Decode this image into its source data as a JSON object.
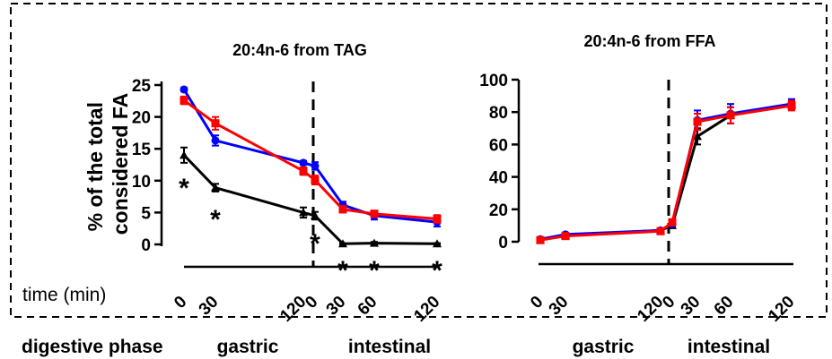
{
  "time_label": "time (min)",
  "phase_row_label": "digestive phase",
  "colors": {
    "series_1": "#0000ff",
    "series_2": "#ff0000",
    "series_3": "#000000"
  },
  "chart_data": [
    {
      "type": "line",
      "title": "20:4n-6 from TAG",
      "ylabel": "% of the total considered FA",
      "ylim": [
        0,
        25
      ],
      "yticks": [
        0,
        5,
        10,
        15,
        20,
        25
      ],
      "x_tick_labels": [
        "0",
        "30",
        "120",
        "0",
        "30",
        "60",
        "120"
      ],
      "phase_labels": [
        "gastric",
        "intestinal"
      ],
      "significance_marker": "*",
      "significant_points": [
        0,
        1,
        2,
        3,
        4,
        5
      ],
      "series": [
        {
          "values": [
            24.3,
            16.3,
            12.8,
            12.3,
            6.2,
            4.5,
            3.5
          ],
          "errors": [
            0.3,
            0.8,
            0.3,
            0.6,
            0.5,
            0.6,
            0.7
          ]
        },
        {
          "values": [
            22.6,
            19.0,
            11.5,
            10.1,
            5.5,
            4.8,
            4.0
          ],
          "errors": [
            0.6,
            1.0,
            0.6,
            0.7,
            0.5,
            0.5,
            0.6
          ]
        },
        {
          "values": [
            14.0,
            8.9,
            5.0,
            4.5,
            0.1,
            0.2,
            0.1
          ],
          "errors": [
            1.2,
            0.6,
            0.8,
            0.6,
            0.1,
            0.2,
            0.1
          ]
        }
      ]
    },
    {
      "type": "line",
      "title": "20:4n-6 from FFA",
      "ylabel": "",
      "ylim": [
        0,
        100
      ],
      "yticks": [
        0,
        20,
        40,
        60,
        80,
        100
      ],
      "x_tick_labels": [
        "0",
        "30",
        "120",
        "0",
        "30",
        "60",
        "120"
      ],
      "phase_labels": [
        "gastric",
        "intestinal"
      ],
      "series": [
        {
          "values": [
            1.5,
            4.5,
            7.0,
            11.0,
            75.0,
            79.0,
            85.0
          ],
          "errors": [
            0.5,
            0.8,
            0.6,
            1.0,
            6.0,
            6.0,
            3.0
          ]
        },
        {
          "values": [
            1.0,
            3.5,
            6.5,
            12.0,
            74.0,
            78.0,
            84.0
          ],
          "errors": [
            0.6,
            0.8,
            0.6,
            1.0,
            5.0,
            5.0,
            3.0
          ]
        },
        {
          "values": [
            1.0,
            4.0,
            7.0,
            10.0,
            65.0,
            78.0,
            85.0
          ],
          "errors": [
            0.5,
            0.8,
            0.6,
            1.0,
            5.0,
            5.0,
            2.0
          ]
        }
      ]
    }
  ]
}
